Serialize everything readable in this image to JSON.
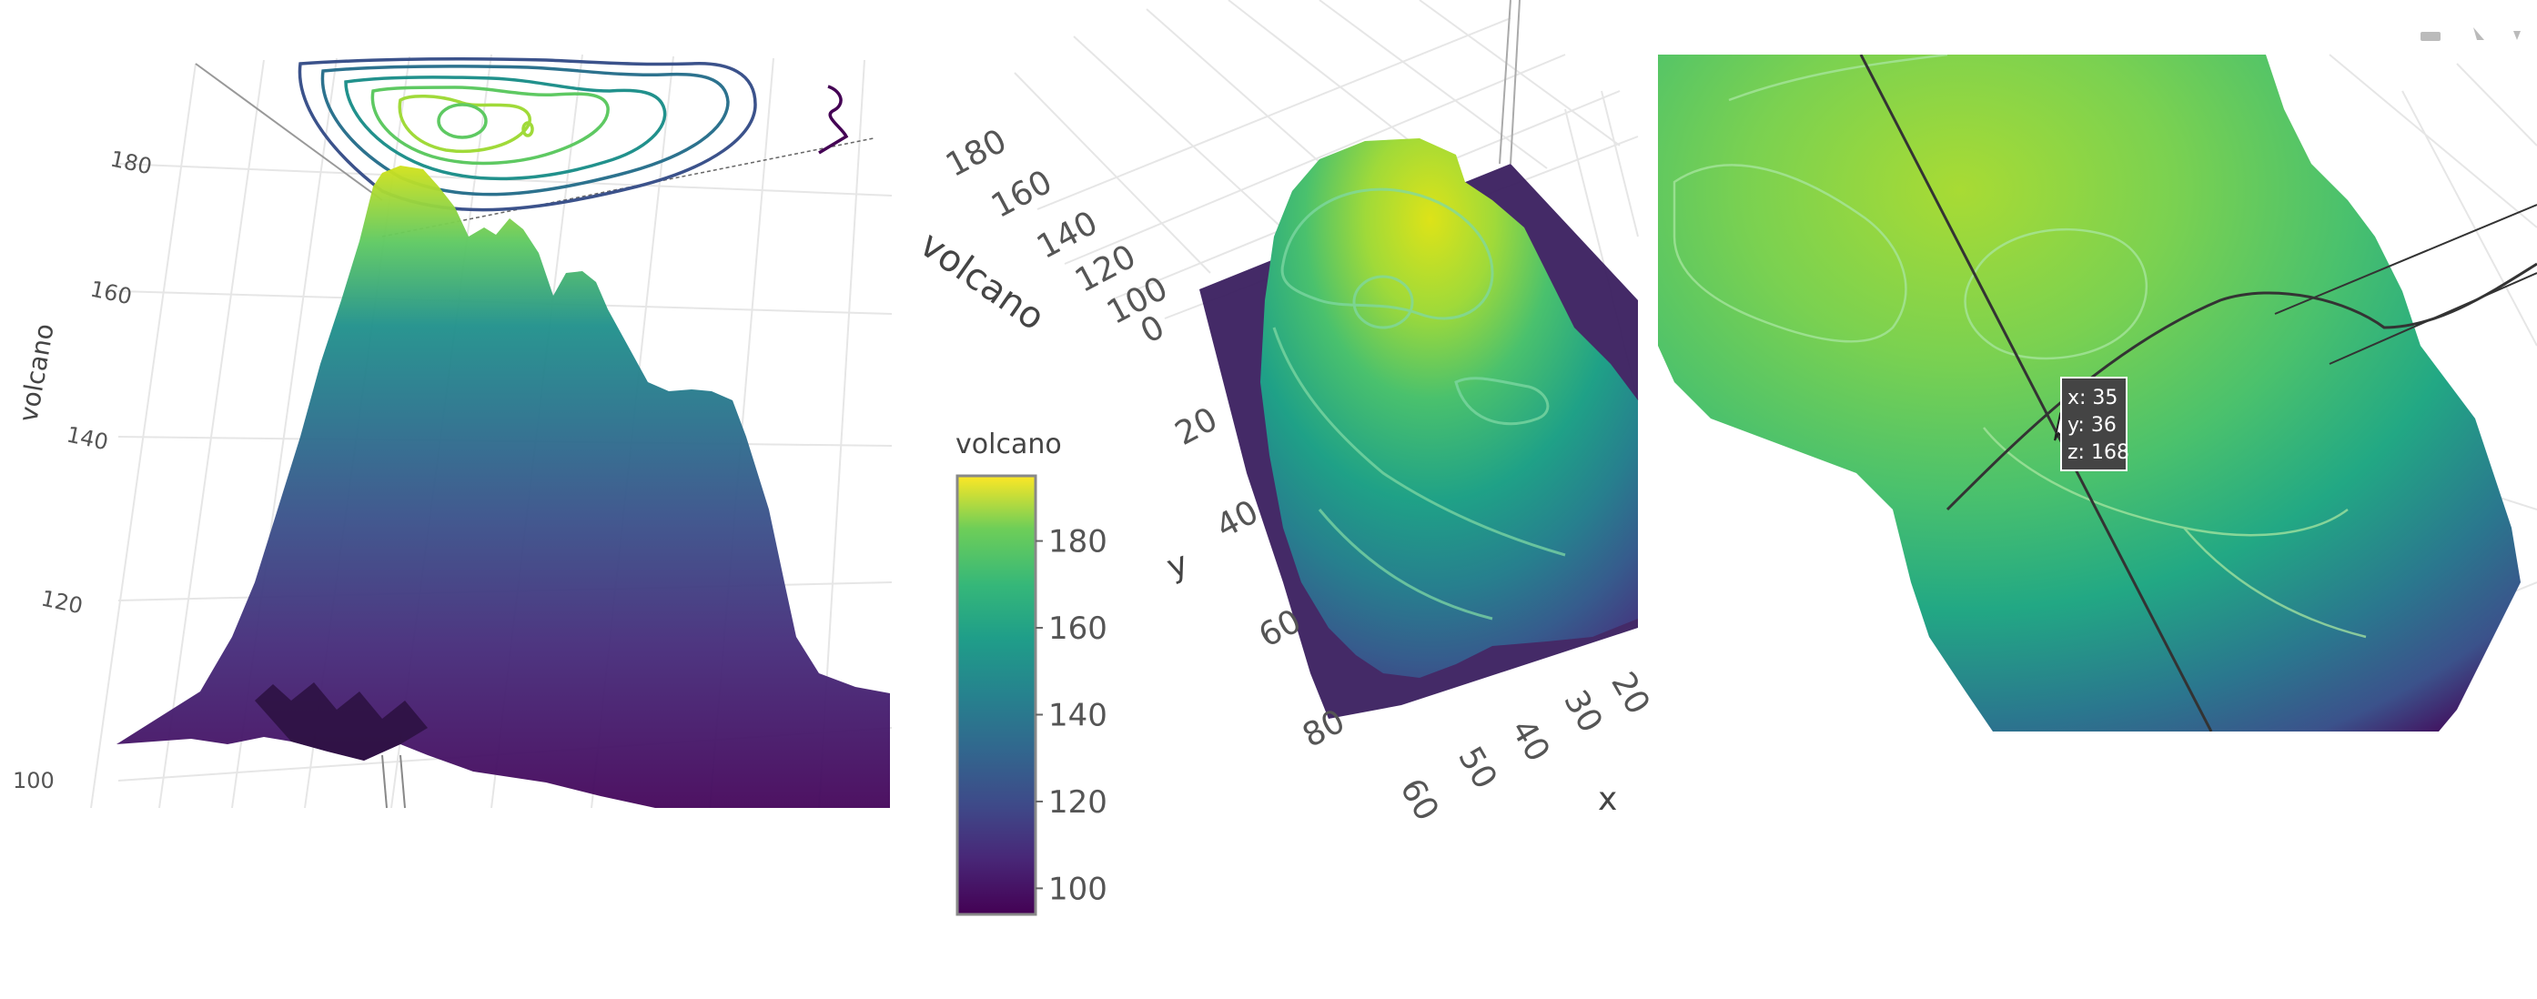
{
  "chart_data": [
    {
      "type": "surface",
      "zaxis": {
        "title": "volcano",
        "ticks": [
          "100",
          "120",
          "140",
          "160",
          "180"
        ]
      },
      "projected_contours": "top",
      "colorscale": "viridis"
    },
    {
      "type": "surface",
      "colorbar": {
        "title": "volcano",
        "ticks": [
          "100",
          "120",
          "140",
          "160",
          "180"
        ],
        "range": [
          94,
          195
        ]
      },
      "zaxis": {
        "title": "volcano",
        "ticks": [
          "180",
          "160",
          "140",
          "120",
          "100",
          "0"
        ]
      },
      "yaxis": {
        "title": "y",
        "ticks": [
          "20",
          "40",
          "60",
          "80"
        ]
      },
      "xaxis": {
        "title": "x",
        "ticks": [
          "60",
          "50",
          "40",
          "30",
          "20"
        ]
      },
      "colorscale": "viridis"
    },
    {
      "type": "surface",
      "hover": {
        "x": 35,
        "y": 36,
        "z": 168,
        "x_label": "x: 35",
        "y_label": "y: 36",
        "z_label": "z: 168"
      },
      "highlight_contour_color": "#d62728",
      "colorscale": "viridis"
    }
  ]
}
